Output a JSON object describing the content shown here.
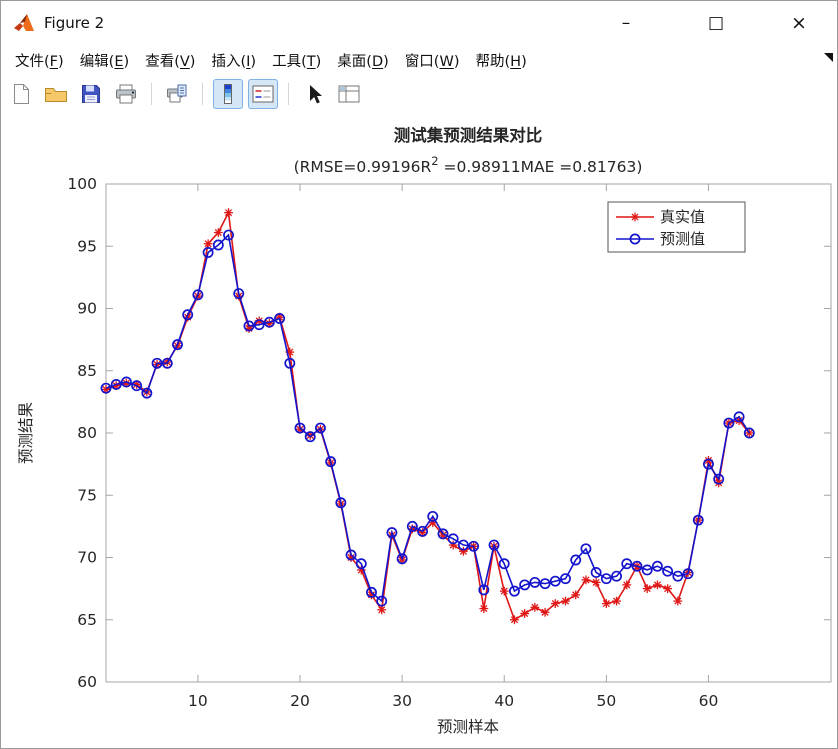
{
  "window": {
    "title": "Figure 2",
    "controls": {
      "minimize": "–",
      "maximize": "□",
      "close": "×"
    }
  },
  "menubar": {
    "items": [
      {
        "name": "file",
        "label": "文件",
        "key": "F"
      },
      {
        "name": "edit",
        "label": "编辑",
        "key": "E"
      },
      {
        "name": "view",
        "label": "查看",
        "key": "V"
      },
      {
        "name": "insert",
        "label": "插入",
        "key": "I"
      },
      {
        "name": "tools",
        "label": "工具",
        "key": "T"
      },
      {
        "name": "desktop",
        "label": "桌面",
        "key": "D"
      },
      {
        "name": "window",
        "label": "窗口",
        "key": "W"
      },
      {
        "name": "help",
        "label": "帮助",
        "key": "H"
      }
    ]
  },
  "toolbar": {
    "buttons": [
      {
        "icon": "new-figure-icon"
      },
      {
        "icon": "open-file-icon"
      },
      {
        "icon": "save-figure-icon"
      },
      {
        "icon": "print-figure-icon"
      },
      {
        "icon": "print-preview-icon"
      },
      {
        "icon": "insert-colorbar-icon"
      },
      {
        "icon": "insert-legend-icon",
        "selected": true
      },
      {
        "icon": "edit-plot-icon"
      },
      {
        "icon": "show-plot-tools-icon"
      }
    ]
  },
  "colors": {
    "axis": "#a6a6a6",
    "text": "#262626",
    "legend_border": "#555555",
    "actual_series": "#e01717",
    "predicted_series": "#1414cc"
  },
  "chart_data": {
    "type": "line",
    "title": "测试集预测结果对比",
    "subtitle": {
      "prefix": "(RMSE=0.99196R",
      "sup": "2",
      "suffix": " =0.98911MAE =0.81763)"
    },
    "stats": {
      "RMSE": 0.99196,
      "R2": 0.98911,
      "MAE": 0.81763
    },
    "xlabel": "预测样本",
    "ylabel": "预测结果",
    "xlim": [
      1,
      72
    ],
    "ylim": [
      60,
      100
    ],
    "xticks": [
      10,
      20,
      30,
      40,
      50,
      60
    ],
    "yticks": [
      60,
      65,
      70,
      75,
      80,
      85,
      90,
      95,
      100
    ],
    "grid": false,
    "legend_position": "top-right",
    "x": [
      1,
      2,
      3,
      4,
      5,
      6,
      7,
      8,
      9,
      10,
      11,
      12,
      13,
      14,
      15,
      16,
      17,
      18,
      19,
      20,
      21,
      22,
      23,
      24,
      25,
      26,
      27,
      28,
      29,
      30,
      31,
      32,
      33,
      34,
      35,
      36,
      37,
      38,
      39,
      40,
      41,
      42,
      43,
      44,
      45,
      46,
      47,
      48,
      49,
      50,
      51,
      52,
      53,
      54,
      55,
      56,
      57,
      58,
      59,
      60,
      61,
      62,
      63,
      64
    ],
    "series": [
      {
        "key": "actual",
        "name": "真实值",
        "color": "#e01717",
        "marker": "asterisk",
        "values": [
          83.5,
          83.8,
          84.0,
          83.9,
          83.3,
          85.5,
          85.7,
          87.0,
          89.3,
          91.0,
          95.2,
          96.1,
          97.7,
          91.0,
          88.4,
          89.0,
          88.8,
          89.3,
          86.5,
          80.3,
          79.8,
          80.3,
          77.6,
          74.3,
          70.0,
          69.0,
          67.0,
          65.8,
          71.8,
          69.8,
          72.3,
          72.0,
          72.8,
          71.8,
          71.0,
          70.5,
          70.9,
          65.9,
          70.9,
          67.3,
          65.0,
          65.5,
          66.0,
          65.6,
          66.3,
          66.5,
          67.0,
          68.2,
          68.0,
          66.3,
          66.5,
          67.8,
          69.3,
          67.5,
          67.8,
          67.5,
          66.5,
          68.8,
          73.0,
          77.8,
          76.0,
          80.8,
          81.0,
          80.0
        ]
      },
      {
        "key": "predicted",
        "name": "预测值",
        "color": "#1414cc",
        "marker": "circle",
        "values": [
          83.6,
          83.9,
          84.1,
          83.8,
          83.2,
          85.6,
          85.6,
          87.1,
          89.5,
          91.1,
          94.5,
          95.1,
          95.9,
          91.2,
          88.6,
          88.7,
          88.9,
          89.2,
          85.6,
          80.4,
          79.7,
          80.4,
          77.7,
          74.4,
          70.2,
          69.5,
          67.2,
          66.5,
          72.0,
          69.9,
          72.5,
          72.1,
          73.3,
          71.9,
          71.5,
          71.0,
          70.9,
          67.4,
          71.0,
          69.5,
          67.3,
          67.8,
          68.0,
          67.9,
          68.1,
          68.3,
          69.8,
          70.7,
          68.8,
          68.3,
          68.5,
          69.5,
          69.3,
          69.0,
          69.3,
          68.9,
          68.5,
          68.7,
          73.0,
          77.5,
          76.3,
          80.8,
          81.3,
          80.0
        ]
      }
    ]
  }
}
